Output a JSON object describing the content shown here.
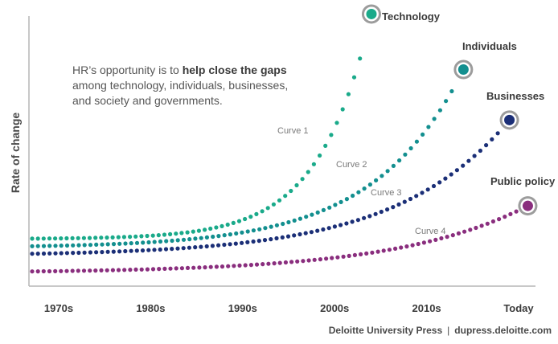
{
  "chart_data": {
    "type": "line",
    "ylabel": "Rate of change",
    "categories": [
      "1970s",
      "1980s",
      "1990s",
      "2000s",
      "2010s",
      "Today"
    ],
    "x_domain": [
      1970,
      2023
    ],
    "y_domain": [
      0,
      1
    ],
    "grid": false,
    "series": [
      {
        "name": "Technology",
        "curve_label": "Curve 1",
        "color": "#1aaa8a",
        "end_x": 2004,
        "start_y": 0.15,
        "end_y": 1.04,
        "k": 6.5
      },
      {
        "name": "Individuals",
        "curve_label": "Curve 2",
        "color": "#138f8f",
        "end_x": 2014,
        "start_y": 0.12,
        "end_y": 0.82,
        "k": 4.8
      },
      {
        "name": "Businesses",
        "curve_label": "Curve 3",
        "color": "#1b2f77",
        "end_x": 2019,
        "start_y": 0.09,
        "end_y": 0.62,
        "k": 4.2
      },
      {
        "name": "Public policy",
        "curve_label": "Curve 4",
        "color": "#8a2e7e",
        "end_x": 2021,
        "start_y": 0.02,
        "end_y": 0.28,
        "k": 3.8
      }
    ]
  },
  "annotation": {
    "part1": "HR’s opportunity is to ",
    "bold": "help close the gaps",
    "part2": " among technology, individuals, businesses, and society and governments."
  },
  "footer": {
    "publisher": "Deloitte University Press",
    "separator": "|",
    "url": "dupress.deloitte.com"
  }
}
